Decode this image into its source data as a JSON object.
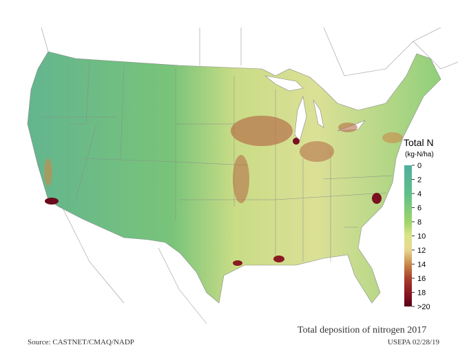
{
  "legend": {
    "title": "Total N",
    "unit": "(kg-N/ha)",
    "range": [
      0,
      20
    ],
    "ticks": [
      0,
      2,
      4,
      6,
      8,
      10,
      12,
      14,
      16,
      18,
      {
        "value": 20,
        "label": ">20"
      }
    ]
  },
  "caption": "Total deposition of nitrogen 2017",
  "source": "Source: CASTNET/CMAQ/NADP",
  "credit": "USEPA 02/28/19"
}
